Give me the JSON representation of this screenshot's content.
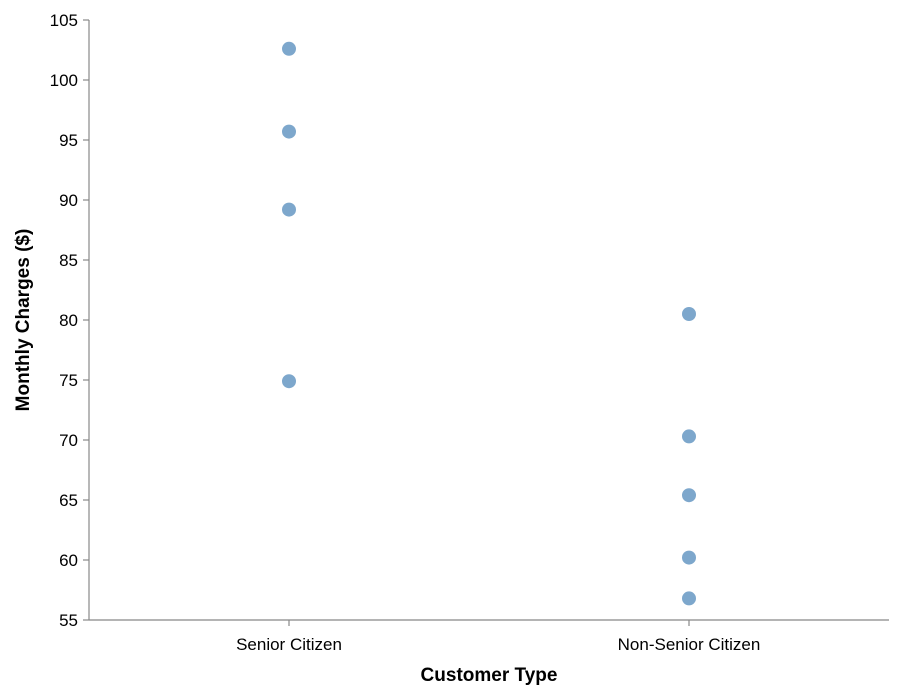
{
  "chart_data": {
    "type": "scatter",
    "xlabel": "Customer Type",
    "ylabel": "Monthly Charges ($)",
    "categories": [
      "Senior Citizen",
      "Non-Senior Citizen"
    ],
    "ylim": [
      55,
      105
    ],
    "yticks": [
      55,
      60,
      65,
      70,
      75,
      80,
      85,
      90,
      95,
      100,
      105
    ],
    "grid": false,
    "point_color": "#7da7cc",
    "points": [
      {
        "category": "Senior Citizen",
        "value": 102.6
      },
      {
        "category": "Senior Citizen",
        "value": 95.7
      },
      {
        "category": "Senior Citizen",
        "value": 89.2
      },
      {
        "category": "Senior Citizen",
        "value": 74.9
      },
      {
        "category": "Non-Senior Citizen",
        "value": 80.5
      },
      {
        "category": "Non-Senior Citizen",
        "value": 70.3
      },
      {
        "category": "Non-Senior Citizen",
        "value": 65.4
      },
      {
        "category": "Non-Senior Citizen",
        "value": 60.2
      },
      {
        "category": "Non-Senior Citizen",
        "value": 56.8
      }
    ]
  }
}
